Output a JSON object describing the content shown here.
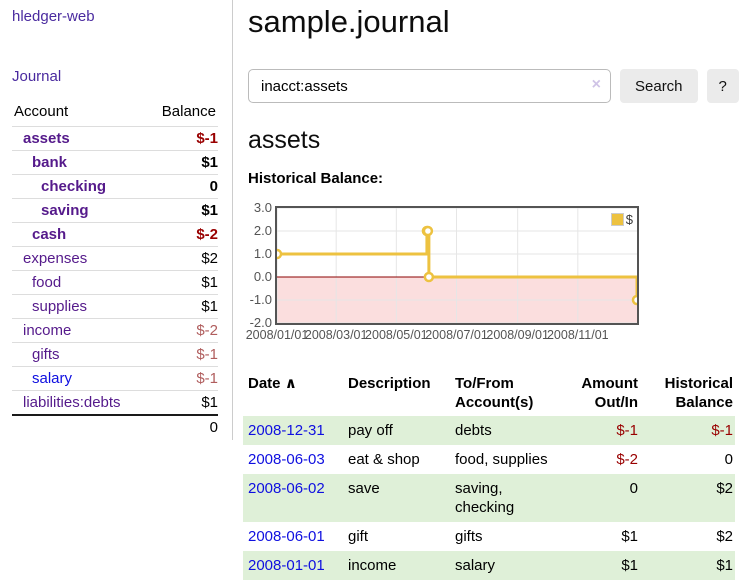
{
  "app": {
    "brand": "hledger-web",
    "nav_journal": "Journal"
  },
  "sidebar": {
    "accounts_header": {
      "account": "Account",
      "balance": "Balance"
    },
    "accounts": [
      {
        "name": "assets",
        "depth": 1,
        "balance": "$-1",
        "bold": true,
        "neg": "strong"
      },
      {
        "name": "bank",
        "depth": 2,
        "balance": "$1",
        "bold": true
      },
      {
        "name": "checking",
        "depth": 3,
        "balance": "0",
        "bold": true
      },
      {
        "name": "saving",
        "depth": 3,
        "balance": "$1",
        "bold": true
      },
      {
        "name": "cash",
        "depth": 2,
        "balance": "$-2",
        "bold": true,
        "neg": "strong"
      },
      {
        "name": "expenses",
        "depth": 1,
        "balance": "$2"
      },
      {
        "name": "food",
        "depth": 2,
        "balance": "$1"
      },
      {
        "name": "supplies",
        "depth": 2,
        "balance": "$1"
      },
      {
        "name": "income",
        "depth": 1,
        "balance": "$-2",
        "neg": "soft"
      },
      {
        "name": "gifts",
        "depth": 2,
        "balance": "$-1",
        "neg": "soft"
      },
      {
        "name": "salary",
        "depth": 2,
        "balance": "$-1",
        "neg": "soft",
        "link": "blue"
      },
      {
        "name": "liabilities:debts",
        "depth": 1,
        "balance": "$1"
      }
    ],
    "total": "0"
  },
  "header": {
    "title": "sample.journal"
  },
  "search": {
    "value": "inacct:assets",
    "clear_icon": "×",
    "button": "Search",
    "help_button": "?"
  },
  "account_page": {
    "title": "assets",
    "chart_label": "Historical Balance:"
  },
  "chart_data": {
    "type": "line",
    "title": "Historical Balance:",
    "legend": "$",
    "legend_position": "top-right",
    "step": true,
    "series": [
      {
        "name": "$",
        "color": "#EDC240",
        "points": [
          {
            "date": "2008-01-01",
            "value": 1
          },
          {
            "date": "2008-06-01",
            "value": 2
          },
          {
            "date": "2008-06-02",
            "value": 2
          },
          {
            "date": "2008-06-03",
            "value": 0
          },
          {
            "date": "2008-12-31",
            "value": -1
          }
        ]
      }
    ],
    "xlim": [
      "2008-01-01",
      "2008-12-31"
    ],
    "ylim": [
      -2,
      3
    ],
    "x_ticks": [
      "2008/01/01",
      "2008/03/01",
      "2008/05/01",
      "2008/07/01",
      "2008/09/01",
      "2008/11/01"
    ],
    "y_ticks": [
      3.0,
      2.0,
      1.0,
      0.0,
      -1.0,
      -2.0
    ],
    "y_tick_labels": [
      "3.0",
      "2.0",
      "1.0",
      "0.0",
      "-1.0",
      "-2.0"
    ],
    "grid": true,
    "grid_color": "#e6e6e6",
    "border_color": "#545454",
    "zero_line_color": "#8b0000",
    "negative_region_color": "#fbdede"
  },
  "register": {
    "headers": {
      "date": "Date",
      "sort_caret": "∧",
      "description": "Description",
      "accounts": "To/From\nAccount(s)",
      "amount": "Amount\nOut/In",
      "balance": "Historical\nBalance"
    },
    "rows": [
      {
        "date": "2008-12-31",
        "description": "pay off",
        "accounts": "debts",
        "amount": "$-1",
        "balance": "$-1",
        "amount_neg": true,
        "balance_neg": true
      },
      {
        "date": "2008-06-03",
        "description": "eat & shop",
        "accounts": "food, supplies",
        "amount": "$-2",
        "balance": "0",
        "amount_neg": true
      },
      {
        "date": "2008-06-02",
        "description": "save",
        "accounts": "saving,\nchecking",
        "amount": "0",
        "balance": "$2"
      },
      {
        "date": "2008-06-01",
        "description": "gift",
        "accounts": "gifts",
        "amount": "$1",
        "balance": "$2"
      },
      {
        "date": "2008-01-01",
        "description": "income",
        "accounts": "salary",
        "amount": "$1",
        "balance": "$1"
      }
    ]
  },
  "colors": {
    "purple_link": "#551a8b",
    "blue_link": "#0f0fe0",
    "negative_strong": "#990000",
    "negative_soft": "#b05d5d",
    "row_stripe_green": "#dff0d8",
    "button_bg": "#ebebeb",
    "chart_line_gold": "#EDC240"
  }
}
